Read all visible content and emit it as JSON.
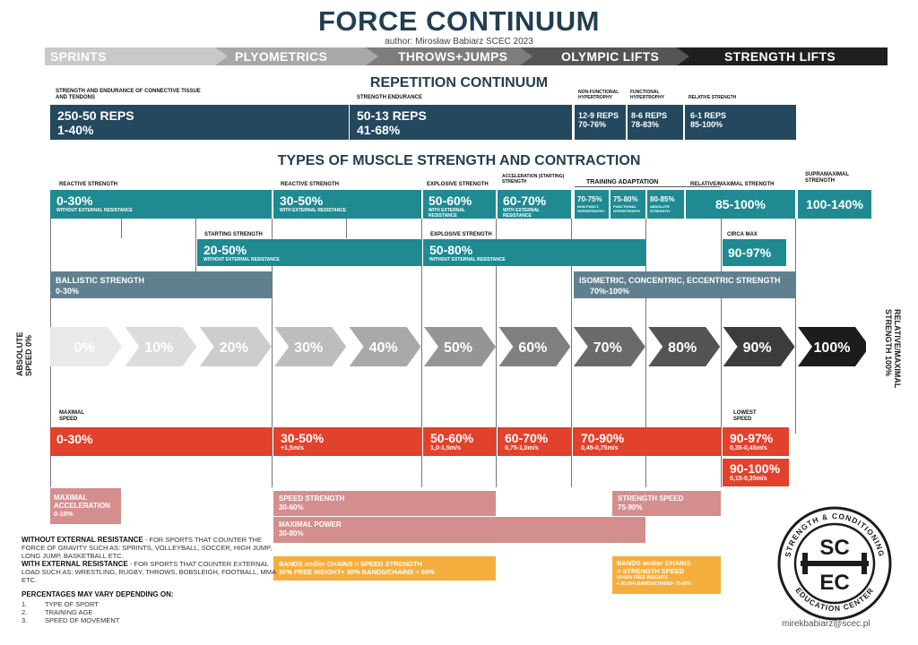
{
  "header": {
    "title": "FORCE CONTINUUM",
    "author": "author: Mirosław Babiarz SCEC 2023"
  },
  "phases": [
    {
      "label": "SPRINTS",
      "color": "#c9c9c9"
    },
    {
      "label": "PLYOMETRICS",
      "color": "#a8a8a8"
    },
    {
      "label": "THROWS+JUMPS",
      "color": "#7d7d7d"
    },
    {
      "label": "OLYMPIC LIFTS",
      "color": "#555555"
    },
    {
      "label": "STRENGTH LIFTS",
      "color": "#1f1f1f"
    }
  ],
  "repetition": {
    "title": "REPETITION CONTINUUM",
    "blocks": [
      {
        "heading": "STRENGTH AND ENDURANCE OF CONNECTIVE TISSUE AND TENDONS",
        "reps": "250-50 REPS",
        "pct": "1-40%"
      },
      {
        "heading": "STRENGTH ENDURANCE",
        "reps": "50-13 REPS",
        "pct": "41-68%"
      },
      {
        "heading": "NON-FUNCTIONAL HYPERTROPHY",
        "reps": "12-9 REPS",
        "pct": "70-76%"
      },
      {
        "heading": "FUNCTIONAL HYPERTROPHY",
        "reps": "8-6 REPS",
        "pct": "78-83%"
      },
      {
        "heading": "RELATIVE STRENGTH",
        "reps": "6-1 REPS",
        "pct": "85-100%"
      }
    ]
  },
  "types": {
    "title": "TYPES OF MUSCLE STRENGTH AND CONTRACTION",
    "row1": [
      {
        "heading": "REACTIVE STRENGTH",
        "value": "0-30%",
        "sub": "WITHOUT EXTERNAL RESISTANCE"
      },
      {
        "heading": "REACTIVE STRENGTH",
        "value": "30-50%",
        "sub": "WITH EXTERNAL RESISTANCE"
      },
      {
        "heading": "EXPLOSIVE STRENGTH",
        "value": "50-60%",
        "sub": "WITH EXTERNAL RESISTANCE"
      },
      {
        "heading": "ACCELERATION (STARTING) STRENGTH",
        "value": "60-70%",
        "sub": "WITH EXTERNAL RESISTANCE"
      },
      {
        "heading": "",
        "value": "70-75%",
        "sub": "NON FUNCT. HYPERTROPHY"
      },
      {
        "heading": "",
        "value": "75-80%",
        "sub": "FUNCTIONAL HYPERTROPHY"
      },
      {
        "heading": "",
        "value": "80-85%",
        "sub": "ABSOLUTE STRENGTH"
      },
      {
        "heading": "RELATIVE/MAXIMAL STRENGTH",
        "value": "85-100%",
        "sub": ""
      },
      {
        "heading": "SUPRAMAXIMAL STRENGTH",
        "value": "100-140%",
        "sub": ""
      }
    ],
    "training_adaptation": "TRAINING ADAPTATION",
    "starting": {
      "heading": "STARTING STRENGTH",
      "value": "20-50%",
      "sub": "WITHOUT EXTERNAL RESISTANCE"
    },
    "explosive2": {
      "heading": "EXPLOSIVE STRENGTH",
      "value": "50-80%",
      "sub": "WITHOUT EXTERNAL RESISTANCE"
    },
    "circa": {
      "heading": "CIRCA MAX",
      "value": "90-97%"
    },
    "ballistic": {
      "label": "BALLISTIC STRENGTH",
      "value": "0-30%"
    },
    "isometric": {
      "label": "ISOMETRIC, CONCENTRIC, ECCENTRIC STRENGTH",
      "value": "70%-100%"
    }
  },
  "scale": {
    "left_label": "ABSOLUTE SPEED 0%",
    "right_label": "RELATIVE/MAXIMAL STRENGTH 100%",
    "arrows": [
      {
        "label": "0%",
        "color": "#e9e9e9"
      },
      {
        "label": "10%",
        "color": "#dcdcdc"
      },
      {
        "label": "20%",
        "color": "#cdcdcd"
      },
      {
        "label": "30%",
        "color": "#bdbdbd"
      },
      {
        "label": "40%",
        "color": "#a9a9a9"
      },
      {
        "label": "50%",
        "color": "#959595"
      },
      {
        "label": "60%",
        "color": "#7f7f7f"
      },
      {
        "label": "70%",
        "color": "#6a6a6a"
      },
      {
        "label": "80%",
        "color": "#545454"
      },
      {
        "label": "90%",
        "color": "#3c3c3c"
      },
      {
        "label": "100%",
        "color": "#1c1c1c"
      }
    ]
  },
  "speed": {
    "max_label": "MAXIMAL SPEED",
    "lowest_label": "LOWEST SPEED",
    "blocks": [
      {
        "value": "0-30%",
        "sub": ""
      },
      {
        "value": "30-50%",
        "sub": "+1,5m/s"
      },
      {
        "value": "50-60%",
        "sub": "1,0-1,5m/s"
      },
      {
        "value": "60-70%",
        "sub": "0,75-1,0m/s"
      },
      {
        "value": "70-90%",
        "sub": "0,45-0,75m/s"
      },
      {
        "value": "90-97%",
        "sub": "0,35-0,45m/s"
      },
      {
        "value": "90-100%",
        "sub": "0,15-0,35m/s"
      }
    ]
  },
  "lower": {
    "maximal_acceleration": {
      "label": "MAXIMAL ACCELERATION",
      "value": "0-10%"
    },
    "speed_strength": {
      "label": "SPEED STRENGTH",
      "value": "30-60%"
    },
    "strength_speed": {
      "label": "STRENGTH SPEED",
      "value": "75-90%"
    },
    "maximal_power": {
      "label": "MAXIMAL POWER",
      "value": "30-80%"
    },
    "bands_left": {
      "line1": "BANDS and/or CHAINS = SPEED STRENGTH",
      "line2": "30% FREE WEIGHT+ 30% BANDS/CHAINS = 60%"
    },
    "bands_right": {
      "line1": "BANDS and/or CHAINS",
      "line2": "= STRENGTH SPEED",
      "line3": "50-60% FREE WEIGHTS",
      "line4": "+ 20-30% BANDS/CHAINS= 75-90%"
    }
  },
  "notes": {
    "without_title": "WITHOUT EXTERNAL RESISTANCE",
    "without_text": " - FOR SPORTS THAT COUNTER THE FORCE OF GRAVITY SUCH AS: SPRINTS, VOLLEYBALL, SOCCER, HIGH JUMP, LONG JUMP, BASKETBALL ETC.",
    "with_title": "WITH EXTERNAL RESISTANCE",
    "with_text": " - FOR SPORTS THAT COUNTER EXTERNAL LOAD SUCH AS: WRESTLING, RUGBY, THROWS, BOBSLEIGH, FOOTBALL, MMA ETC.",
    "pct_title": "PERCENTAGES MAY VARY DEPENDING ON:",
    "pct_items": [
      "TYPE OF SPORT",
      "TRAINING AGE",
      "SPEED OF MOVEMENT"
    ]
  },
  "logo": {
    "top": "SC",
    "bottom": "EC",
    "ring_top": "STRENGTH & CONDITIONING",
    "ring_bottom": "EDUCATION CENTER"
  },
  "contact": "mirekbabiarz@scec.pl"
}
